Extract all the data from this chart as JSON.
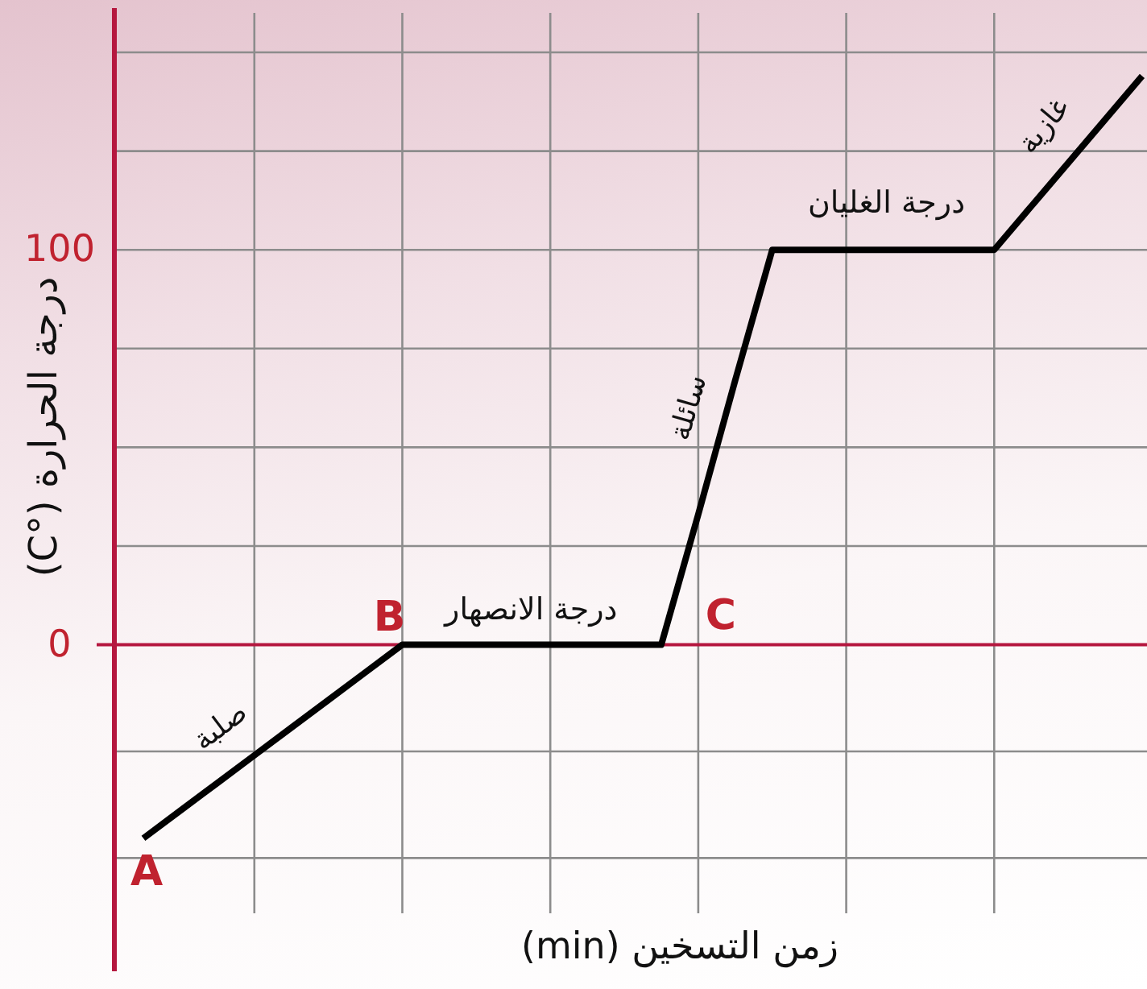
{
  "chart_data": {
    "type": "line",
    "xlabel": "زمن التسخين (min)",
    "ylabel": "درجة الحرارة (°C)",
    "categories": [
      null,
      null,
      null,
      null,
      null,
      null,
      null,
      null,
      null,
      null,
      null,
      null,
      null,
      null,
      null,
      null,
      null,
      null,
      null,
      null,
      null,
      null,
      null,
      null,
      null,
      null,
      null,
      null
    ],
    "series": [
      {
        "color": "#000000",
        "values": [
          -49,
          -42,
          -35,
          -28,
          -21,
          -14,
          -7,
          0,
          0,
          0,
          0,
          0,
          0,
          0,
          0,
          33,
          67,
          100,
          100,
          100,
          100,
          100,
          100,
          100,
          111,
          122,
          133,
          144
        ]
      }
    ],
    "ylim": [
      -68,
      160
    ],
    "yticks": [
      {
        "value": -54,
        "label": null
      },
      {
        "value": -27,
        "label": null
      },
      0,
      {
        "value": 25,
        "label": null
      },
      {
        "value": 50,
        "label": null
      },
      {
        "value": 75,
        "label": null
      },
      100,
      {
        "value": 125,
        "label": null
      },
      {
        "value": 150,
        "label": null
      }
    ],
    "grid": true,
    "marker": "none",
    "line_style": "solid",
    "ref_lines": [
      {
        "axis": "y",
        "value": 0,
        "color": "#b5173f"
      }
    ],
    "annotations": [
      {
        "text": "A",
        "y": -49
      },
      {
        "text": "B",
        "y": 0
      },
      {
        "text": "C",
        "y": 0
      },
      {
        "text": "صلبة",
        "y": -35
      },
      {
        "text": "درجة الانصهار",
        "y": 0
      },
      "سائلة",
      {
        "text": "درجة الغليان",
        "y": 100
      },
      "غازية"
    ]
  }
}
